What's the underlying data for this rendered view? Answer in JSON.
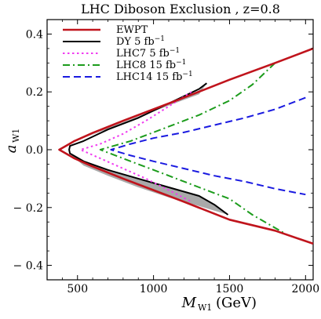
{
  "chart_data": {
    "type": "line",
    "title": "LHC Diboson Exclusion , z=0.8",
    "xlabel": "M",
    "xlabel_sub": "W1",
    "xlabel_unit": "(GeV)",
    "ylabel": "a",
    "ylabel_sub": "W1",
    "xlim": [
      300,
      2050
    ],
    "ylim": [
      -0.45,
      0.45
    ],
    "x_ticks": [
      500,
      1000,
      1500,
      2000
    ],
    "x_tick_labels": [
      "500",
      "1000",
      "1500",
      "2000"
    ],
    "y_ticks": [
      -0.4,
      -0.2,
      0.0,
      0.2,
      0.4
    ],
    "y_tick_labels": [
      "− 0.4",
      "− 0.2",
      "0.0",
      "0.2",
      "0.4"
    ],
    "grid": false,
    "legend_position": "top-left",
    "series": [
      {
        "name": "EWPT",
        "color": "#c0141c",
        "style": "solid",
        "points": [
          [
            2050,
            0.35
          ],
          [
            1800,
            0.3
          ],
          [
            1500,
            0.242
          ],
          [
            1200,
            0.18
          ],
          [
            1000,
            0.14
          ],
          [
            800,
            0.1
          ],
          [
            600,
            0.058
          ],
          [
            480,
            0.03
          ],
          [
            420,
            0.012
          ],
          [
            380,
            0.0
          ],
          [
            420,
            -0.012
          ],
          [
            480,
            -0.03
          ],
          [
            600,
            -0.058
          ],
          [
            800,
            -0.1
          ],
          [
            1000,
            -0.14
          ],
          [
            1200,
            -0.18
          ],
          [
            1500,
            -0.242
          ],
          [
            1800,
            -0.28
          ],
          [
            2050,
            -0.325
          ]
        ]
      },
      {
        "name": "DY 5 fb",
        "color": "#000000",
        "style": "solid",
        "points": [
          [
            1350,
            0.23
          ],
          [
            1300,
            0.21
          ],
          [
            1100,
            0.16
          ],
          [
            900,
            0.11
          ],
          [
            700,
            0.07
          ],
          [
            540,
            0.03
          ],
          [
            450,
            0.013
          ],
          [
            445,
            0.0
          ],
          [
            450,
            -0.013
          ],
          [
            540,
            -0.04
          ],
          [
            700,
            -0.07
          ],
          [
            900,
            -0.1
          ],
          [
            1100,
            -0.13
          ],
          [
            1300,
            -0.16
          ],
          [
            1400,
            -0.19
          ],
          [
            1490,
            -0.225
          ]
        ]
      },
      {
        "name": "LHC7 5 fb",
        "color": "#f03cf0",
        "style": "dotted",
        "points": [
          [
            1250,
            0.2
          ],
          [
            1100,
            0.15
          ],
          [
            950,
            0.1
          ],
          [
            800,
            0.055
          ],
          [
            650,
            0.02
          ],
          [
            520,
            0.0
          ],
          [
            650,
            -0.03
          ],
          [
            800,
            -0.065
          ],
          [
            950,
            -0.1
          ],
          [
            1100,
            -0.14
          ],
          [
            1250,
            -0.18
          ]
        ]
      },
      {
        "name": "LHC8 15 fb",
        "color": "#1c9c1c",
        "style": "dashdot",
        "points": [
          [
            1800,
            0.3
          ],
          [
            1650,
            0.225
          ],
          [
            1500,
            0.17
          ],
          [
            1300,
            0.12
          ],
          [
            1050,
            0.07
          ],
          [
            850,
            0.03
          ],
          [
            650,
            0.0
          ],
          [
            850,
            -0.04
          ],
          [
            1050,
            -0.08
          ],
          [
            1300,
            -0.13
          ],
          [
            1500,
            -0.17
          ],
          [
            1650,
            -0.225
          ],
          [
            1880,
            -0.295
          ]
        ]
      },
      {
        "name": "LHC14 15 fb",
        "color": "#1a1ae0",
        "style": "dashed",
        "points": [
          [
            2000,
            0.18
          ],
          [
            1800,
            0.14
          ],
          [
            1600,
            0.11
          ],
          [
            1400,
            0.085
          ],
          [
            1200,
            0.06
          ],
          [
            1000,
            0.04
          ],
          [
            850,
            0.02
          ],
          [
            720,
            0.0
          ],
          [
            850,
            -0.02
          ],
          [
            1000,
            -0.04
          ],
          [
            1200,
            -0.065
          ],
          [
            1400,
            -0.09
          ],
          [
            1600,
            -0.11
          ],
          [
            1800,
            -0.135
          ],
          [
            2000,
            -0.155
          ]
        ]
      }
    ],
    "shaded_regions": [
      {
        "name": "upper-gray-region",
        "color": "#a9a9a9",
        "points": [
          [
            450,
            0.022
          ],
          [
            540,
            0.04
          ],
          [
            700,
            0.075
          ],
          [
            900,
            0.115
          ],
          [
            1100,
            0.158
          ],
          [
            1300,
            0.205
          ],
          [
            1350,
            0.23
          ],
          [
            1300,
            0.192
          ],
          [
            1100,
            0.153
          ],
          [
            900,
            0.112
          ],
          [
            700,
            0.072
          ],
          [
            540,
            0.04
          ],
          [
            470,
            0.025
          ]
        ]
      },
      {
        "name": "lower-gray-region",
        "color": "#a9a9a9",
        "points": [
          [
            450,
            -0.015
          ],
          [
            540,
            -0.04
          ],
          [
            700,
            -0.07
          ],
          [
            900,
            -0.1
          ],
          [
            1100,
            -0.13
          ],
          [
            1300,
            -0.16
          ],
          [
            1400,
            -0.19
          ],
          [
            1490,
            -0.225
          ],
          [
            1300,
            -0.195
          ],
          [
            1100,
            -0.165
          ],
          [
            900,
            -0.13
          ],
          [
            700,
            -0.09
          ],
          [
            540,
            -0.055
          ]
        ]
      }
    ],
    "legend": [
      {
        "label": "EWPT",
        "sup": "",
        "series": 0
      },
      {
        "label": "DY 5 fb",
        "sup": "−1",
        "series": 1
      },
      {
        "label": "LHC7 5 fb",
        "sup": "−1",
        "series": 2
      },
      {
        "label": "LHC8 15 fb",
        "sup": "−1",
        "series": 3
      },
      {
        "label": "LHC14 15 fb",
        "sup": "−1",
        "series": 4
      }
    ]
  }
}
